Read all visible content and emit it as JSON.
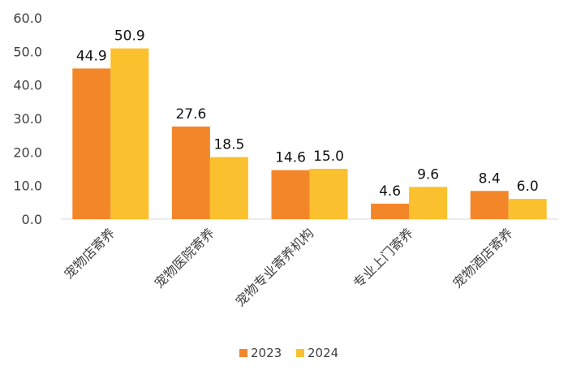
{
  "chart_data": {
    "type": "bar",
    "categories": [
      "宠物店寄养",
      "宠物医院寄养",
      "宠物专业寄养机构",
      "专业上门寄养",
      "宠物酒店寄养"
    ],
    "series": [
      {
        "name": "2023",
        "values": [
          44.9,
          27.6,
          14.6,
          4.6,
          8.4
        ],
        "color": "#F4862A"
      },
      {
        "name": "2024",
        "values": [
          50.9,
          18.5,
          15.0,
          9.6,
          6.0
        ],
        "color": "#FBC02D"
      }
    ],
    "ylim": [
      0,
      60
    ],
    "yticks": [
      "0.0",
      "10.0",
      "20.0",
      "30.0",
      "40.0",
      "50.0",
      "60.0"
    ],
    "grid": false,
    "legend_position": "bottom"
  }
}
